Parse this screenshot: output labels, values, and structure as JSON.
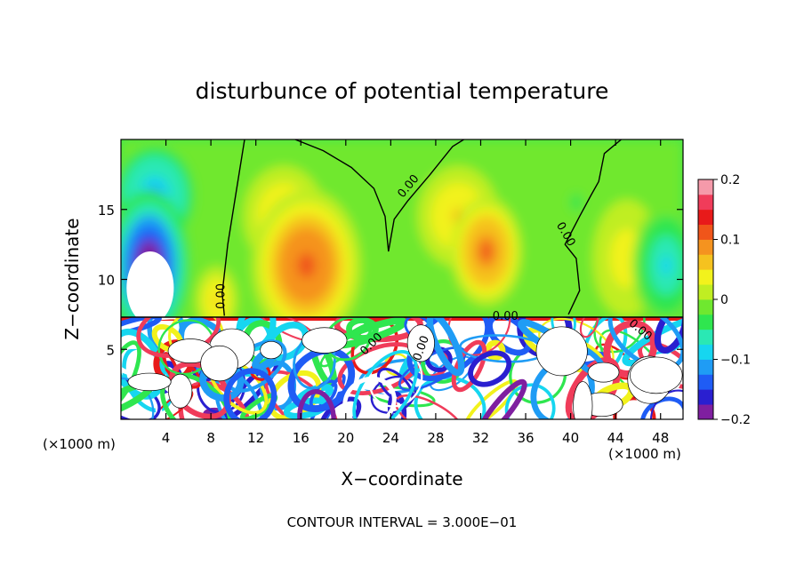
{
  "chart_data": {
    "type": "heatmap",
    "title": "disturbunce of potential temperature",
    "xlabel": "X−coordinate",
    "ylabel": "Z−coordinate",
    "x_unit_left": "(×1000 m)",
    "x_unit_right": "(×1000 m)",
    "footer": "CONTOUR INTERVAL = 3.000E−01",
    "xlim": [
      0,
      50
    ],
    "ylim": [
      0,
      20
    ],
    "x_ticks": [
      4,
      8,
      12,
      16,
      20,
      24,
      28,
      32,
      36,
      40,
      44,
      48
    ],
    "y_ticks": [
      5,
      10,
      15
    ],
    "colorbar": {
      "range": [
        -0.2,
        0.2
      ],
      "tick_values": [
        0.2,
        0.1,
        0,
        -0.1,
        -0.2
      ],
      "tick_labels": [
        "0.2",
        "0.1",
        "0",
        "−0.1",
        "−0.2"
      ],
      "colors": [
        "#7f1fa0",
        "#2a1fd0",
        "#1f5cf5",
        "#1f9cf5",
        "#16d6f0",
        "#2ae8b4",
        "#2fe64f",
        "#6fe82f",
        "#c0ee22",
        "#f2f21c",
        "#f5c21f",
        "#f5931f",
        "#f0551a",
        "#e81a1a",
        "#f03c5a",
        "#f59aaa"
      ]
    },
    "contour_labels": [
      {
        "text": "0.00",
        "x": 25.8,
        "y": 16.5,
        "angle": -50
      },
      {
        "text": "0.00",
        "x": 39.3,
        "y": 13.1,
        "angle": 60
      },
      {
        "text": "0.00",
        "x": 9.2,
        "y": 8.8,
        "angle": -90
      },
      {
        "text": "0.00",
        "x": 34.2,
        "y": 7.1,
        "angle": 0
      },
      {
        "text": "0.00",
        "x": 46.0,
        "y": 6.2,
        "angle": 40
      },
      {
        "text": "0.00",
        "x": 22.5,
        "y": 5.2,
        "angle": -45
      },
      {
        "text": "0.00",
        "x": 27.0,
        "y": 5.0,
        "angle": -70
      }
    ],
    "field_blobs": [
      {
        "x": 16.5,
        "y": 11.0,
        "v": 0.12,
        "sx": 4.0,
        "sy": 4.5
      },
      {
        "x": 14.5,
        "y": 14.5,
        "v": 0.06,
        "sx": 3.0,
        "sy": 3.0
      },
      {
        "x": 32.5,
        "y": 12.0,
        "v": 0.1,
        "sx": 2.6,
        "sy": 3.2
      },
      {
        "x": 30.0,
        "y": 14.5,
        "v": 0.05,
        "sx": 3.0,
        "sy": 3.0
      },
      {
        "x": 45.0,
        "y": 11.5,
        "v": 0.04,
        "sx": 2.5,
        "sy": 3.5
      },
      {
        "x": 2.5,
        "y": 11.0,
        "v": -0.22,
        "sx": 3.0,
        "sy": 4.5
      },
      {
        "x": 3.0,
        "y": 16.0,
        "v": -0.1,
        "sx": 3.5,
        "sy": 3.5
      },
      {
        "x": 48.5,
        "y": 11.0,
        "v": -0.09,
        "sx": 2.5,
        "sy": 3.5
      },
      {
        "x": 40.5,
        "y": 15.5,
        "v": -0.03,
        "sx": 2.5,
        "sy": 3.0
      },
      {
        "x": 8.5,
        "y": 8.5,
        "v": 0.05,
        "sx": 1.5,
        "sy": 2.0
      },
      {
        "x": 24.0,
        "y": 12.0,
        "v": -0.02,
        "sx": 3.0,
        "sy": 4.0
      }
    ],
    "grid": false
  }
}
